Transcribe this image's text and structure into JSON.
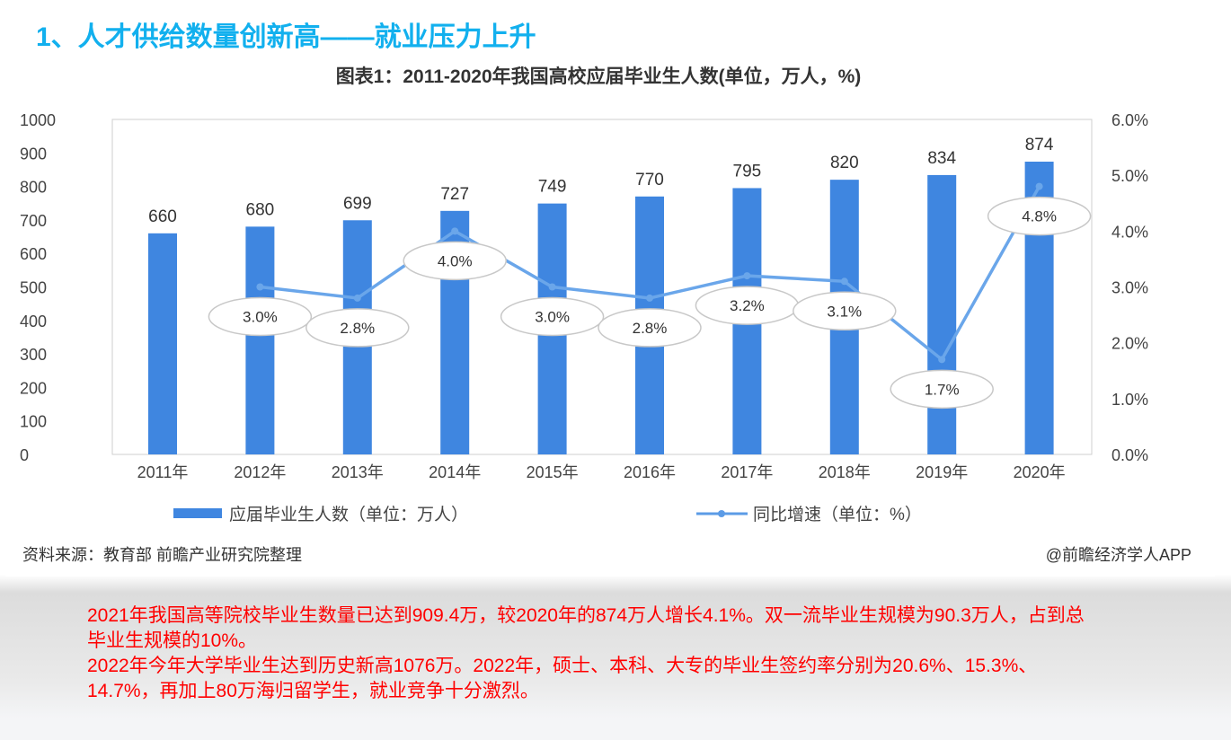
{
  "heading": "1、人才供给数量创新高——就业压力上升",
  "chart_data": {
    "type": "bar+line",
    "title": "图表1：2011-2020年我国高校应届毕业生人数(单位，万人，%)",
    "categories": [
      "2011年",
      "2012年",
      "2013年",
      "2014年",
      "2015年",
      "2016年",
      "2017年",
      "2018年",
      "2019年",
      "2020年"
    ],
    "series": [
      {
        "name": "应届毕业生人数（单位：万人）",
        "type": "bar",
        "axis": "left",
        "color": "#3f86e0",
        "values": [
          660,
          680,
          699,
          727,
          749,
          770,
          795,
          820,
          834,
          874
        ]
      },
      {
        "name": "同比增速（单位：%）",
        "type": "line",
        "axis": "right",
        "color": "#6aa6ea",
        "values": [
          null,
          3.0,
          2.8,
          4.0,
          3.0,
          2.8,
          3.2,
          3.1,
          1.7,
          4.8
        ],
        "labels": [
          "",
          "3.0%",
          "2.8%",
          "4.0%",
          "3.0%",
          "2.8%",
          "3.2%",
          "3.1%",
          "1.7%",
          "4.8%"
        ]
      }
    ],
    "ylim_left": [
      0,
      1000
    ],
    "yticks_left": [
      "0",
      "100",
      "200",
      "300",
      "400",
      "500",
      "600",
      "700",
      "800",
      "900",
      "1000"
    ],
    "ylim_right": [
      0,
      6
    ],
    "yticks_right": [
      "0.0%",
      "1.0%",
      "2.0%",
      "3.0%",
      "4.0%",
      "5.0%",
      "6.0%"
    ],
    "legend": [
      "应届毕业生人数（单位：万人）",
      "同比增速（单位：%）"
    ],
    "legend_position": "bottom",
    "source": "资料来源：教育部 前瞻产业研究院整理",
    "credit": "@前瞻经济学人APP"
  },
  "body": [
    "2021年我国高等院校毕业生数量已达到909.4万，较2020年的874万人增长4.1%。双一流毕业生规模为90.3万人，占到总毕业生规模的10%。",
    "2022年今年大学毕业生达到历史新高1076万。2022年，硕士、本科、大专的毕业生签约率分别为20.6%、15.3%、14.7%，再加上80万海归留学生，就业竞争十分激烈。"
  ]
}
